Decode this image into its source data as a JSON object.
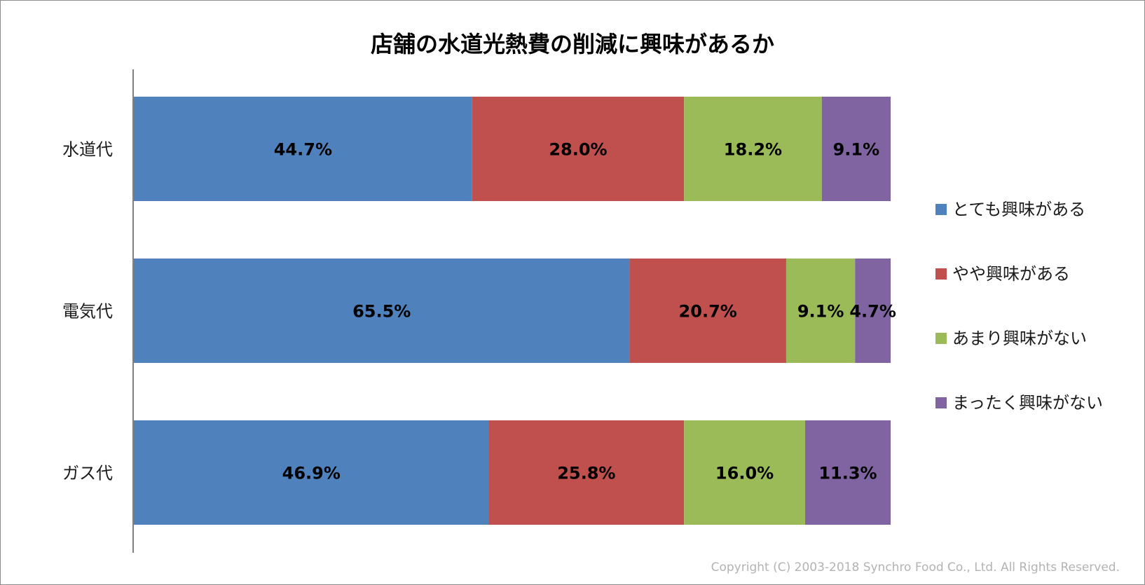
{
  "chart_data": {
    "type": "bar",
    "orientation": "horizontal",
    "stacked": "percent",
    "title": "店舗の水道光熱費の削減に興味があるか",
    "categories": [
      "水道代",
      "電気代",
      "ガス代"
    ],
    "series": [
      {
        "name": "とても興味がある",
        "color": "#4f81bd",
        "values": [
          44.7,
          65.5,
          46.9
        ]
      },
      {
        "name": "やや興味がある",
        "color": "#c0504d",
        "values": [
          28.0,
          20.7,
          25.8
        ]
      },
      {
        "name": "あまり興味がない",
        "color": "#9bbb59",
        "values": [
          18.2,
          9.1,
          16.0
        ]
      },
      {
        "name": "まったく興味がない",
        "color": "#8064a2",
        "values": [
          9.1,
          4.7,
          11.3
        ]
      }
    ],
    "xlim": [
      0,
      100
    ],
    "value_suffix": "%",
    "grid": false,
    "legend_position": "right"
  },
  "copyright": "Copyright (C) 2003-2018  Synchro Food Co., Ltd. All Rights Reserved."
}
